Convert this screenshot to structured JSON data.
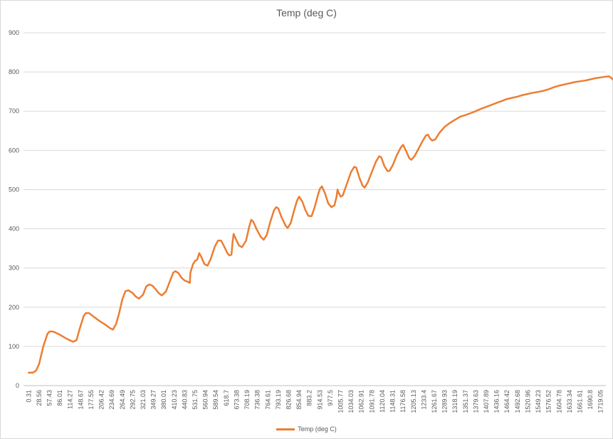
{
  "chart_data": {
    "type": "line",
    "title": "Temp (deg C)",
    "xlabel": "",
    "ylabel": "",
    "ylim": [
      0,
      900
    ],
    "yticks": [
      0,
      100,
      200,
      300,
      400,
      500,
      600,
      700,
      800,
      900
    ],
    "grid": "horizontal",
    "legend": "bottom",
    "x_tick_labels": [
      "0.31",
      "28.56",
      "57.43",
      "86.01",
      "114.27",
      "148.67",
      "177.55",
      "206.42",
      "234.69",
      "264.49",
      "292.75",
      "321.03",
      "349.27",
      "380.01",
      "410.23",
      "440.83",
      "531.75",
      "560.94",
      "589.54",
      "618.7",
      "673.38",
      "708.19",
      "736.38",
      "764.61",
      "793.19",
      "826.68",
      "854.94",
      "883.2",
      "914.53",
      "977.5",
      "1005.77",
      "1034.03",
      "1062.91",
      "1091.78",
      "1120.04",
      "1148.31",
      "1176.58",
      "1205.13",
      "1233.4",
      "1261.67",
      "1289.93",
      "1318.19",
      "1351.37",
      "1379.63",
      "1407.89",
      "1436.16",
      "1464.42",
      "1492.68",
      "1520.96",
      "1549.23",
      "1576.52",
      "1604.78",
      "1633.34",
      "1661.61",
      "1690.8",
      "1719.05"
    ],
    "series": [
      {
        "name": "Temp (deg C)",
        "color": "#ED7D31",
        "points": [
          [
            0,
            33
          ],
          [
            0.4,
            33
          ],
          [
            0.7,
            38
          ],
          [
            1.0,
            55
          ],
          [
            1.4,
            100
          ],
          [
            1.8,
            132
          ],
          [
            2.0,
            138
          ],
          [
            2.3,
            138
          ],
          [
            2.6,
            135
          ],
          [
            3.0,
            130
          ],
          [
            3.5,
            122
          ],
          [
            4.0,
            115
          ],
          [
            4.3,
            112
          ],
          [
            4.6,
            116
          ],
          [
            4.9,
            145
          ],
          [
            5.3,
            178
          ],
          [
            5.5,
            185
          ],
          [
            5.8,
            185
          ],
          [
            6.3,
            175
          ],
          [
            6.8,
            165
          ],
          [
            7.4,
            155
          ],
          [
            7.8,
            147
          ],
          [
            8.1,
            143
          ],
          [
            8.4,
            157
          ],
          [
            8.7,
            185
          ],
          [
            9.0,
            220
          ],
          [
            9.3,
            241
          ],
          [
            9.6,
            243
          ],
          [
            10.0,
            236
          ],
          [
            10.3,
            227
          ],
          [
            10.6,
            222
          ],
          [
            11.0,
            232
          ],
          [
            11.3,
            253
          ],
          [
            11.6,
            258
          ],
          [
            11.9,
            255
          ],
          [
            12.2,
            246
          ],
          [
            12.5,
            236
          ],
          [
            12.8,
            230
          ],
          [
            13.2,
            240
          ],
          [
            13.6,
            268
          ],
          [
            13.9,
            288
          ],
          [
            14.1,
            292
          ],
          [
            14.4,
            287
          ],
          [
            14.7,
            275
          ],
          [
            15.0,
            268
          ],
          [
            15.3,
            265
          ],
          [
            15.5,
            262
          ],
          [
            15.55,
            288
          ],
          [
            15.8,
            310
          ],
          [
            16.0,
            318
          ],
          [
            16.2,
            321
          ],
          [
            16.4,
            338
          ],
          [
            16.6,
            328
          ],
          [
            16.9,
            310
          ],
          [
            17.2,
            306
          ],
          [
            17.5,
            323
          ],
          [
            17.9,
            355
          ],
          [
            18.2,
            370
          ],
          [
            18.5,
            370
          ],
          [
            18.8,
            355
          ],
          [
            19.1,
            338
          ],
          [
            19.3,
            332
          ],
          [
            19.5,
            334
          ],
          [
            19.6,
            365
          ],
          [
            19.7,
            387
          ],
          [
            19.9,
            375
          ],
          [
            20.2,
            358
          ],
          [
            20.5,
            353
          ],
          [
            20.9,
            370
          ],
          [
            21.2,
            405
          ],
          [
            21.4,
            423
          ],
          [
            21.6,
            418
          ],
          [
            21.9,
            400
          ],
          [
            22.3,
            380
          ],
          [
            22.6,
            372
          ],
          [
            22.9,
            385
          ],
          [
            23.2,
            415
          ],
          [
            23.6,
            448
          ],
          [
            23.8,
            455
          ],
          [
            24.0,
            452
          ],
          [
            24.3,
            430
          ],
          [
            24.7,
            408
          ],
          [
            24.9,
            402
          ],
          [
            25.2,
            415
          ],
          [
            25.5,
            445
          ],
          [
            25.8,
            472
          ],
          [
            26.0,
            482
          ],
          [
            26.3,
            470
          ],
          [
            26.6,
            448
          ],
          [
            26.9,
            433
          ],
          [
            27.2,
            432
          ],
          [
            27.5,
            455
          ],
          [
            27.8,
            485
          ],
          [
            28.0,
            502
          ],
          [
            28.2,
            508
          ],
          [
            28.5,
            490
          ],
          [
            28.8,
            465
          ],
          [
            29.1,
            455
          ],
          [
            29.4,
            460
          ],
          [
            29.6,
            482
          ],
          [
            29.7,
            500
          ],
          [
            29.8,
            492
          ],
          [
            30.0,
            482
          ],
          [
            30.2,
            485
          ],
          [
            30.6,
            515
          ],
          [
            31.0,
            545
          ],
          [
            31.3,
            558
          ],
          [
            31.5,
            556
          ],
          [
            31.8,
            530
          ],
          [
            32.1,
            510
          ],
          [
            32.3,
            505
          ],
          [
            32.6,
            518
          ],
          [
            33.0,
            545
          ],
          [
            33.4,
            572
          ],
          [
            33.7,
            585
          ],
          [
            33.9,
            582
          ],
          [
            34.2,
            560
          ],
          [
            34.5,
            547
          ],
          [
            34.7,
            548
          ],
          [
            35.0,
            562
          ],
          [
            35.4,
            588
          ],
          [
            35.8,
            608
          ],
          [
            36.0,
            614
          ],
          [
            36.3,
            598
          ],
          [
            36.6,
            580
          ],
          [
            36.8,
            576
          ],
          [
            37.1,
            585
          ],
          [
            37.5,
            605
          ],
          [
            37.9,
            625
          ],
          [
            38.2,
            638
          ],
          [
            38.4,
            640
          ],
          [
            38.6,
            630
          ],
          [
            38.8,
            625
          ],
          [
            39.1,
            628
          ],
          [
            39.5,
            645
          ],
          [
            40.0,
            660
          ],
          [
            40.5,
            670
          ],
          [
            41.0,
            678
          ],
          [
            41.5,
            686
          ],
          [
            42.0,
            690
          ],
          [
            42.5,
            695
          ],
          [
            43.0,
            700
          ],
          [
            43.5,
            706
          ],
          [
            44.0,
            711
          ],
          [
            44.5,
            716
          ],
          [
            45.0,
            721
          ],
          [
            45.5,
            726
          ],
          [
            46.0,
            731
          ],
          [
            46.5,
            734
          ],
          [
            47.0,
            737
          ],
          [
            47.5,
            741
          ],
          [
            48.0,
            744
          ],
          [
            48.5,
            747
          ],
          [
            49.0,
            749
          ],
          [
            49.5,
            752
          ],
          [
            50.0,
            756
          ],
          [
            50.5,
            761
          ],
          [
            51.0,
            765
          ],
          [
            51.5,
            768
          ],
          [
            52.0,
            771
          ],
          [
            52.5,
            774
          ],
          [
            53.0,
            776
          ],
          [
            53.5,
            778
          ],
          [
            54.0,
            781
          ],
          [
            54.5,
            784
          ],
          [
            55.0,
            786
          ],
          [
            55.5,
            788
          ],
          [
            55.8,
            789
          ],
          [
            56.0,
            785
          ],
          [
            56.3,
            778
          ],
          [
            56.7,
            782
          ],
          [
            57.1,
            788
          ],
          [
            57.3,
            790
          ]
        ]
      }
    ]
  }
}
